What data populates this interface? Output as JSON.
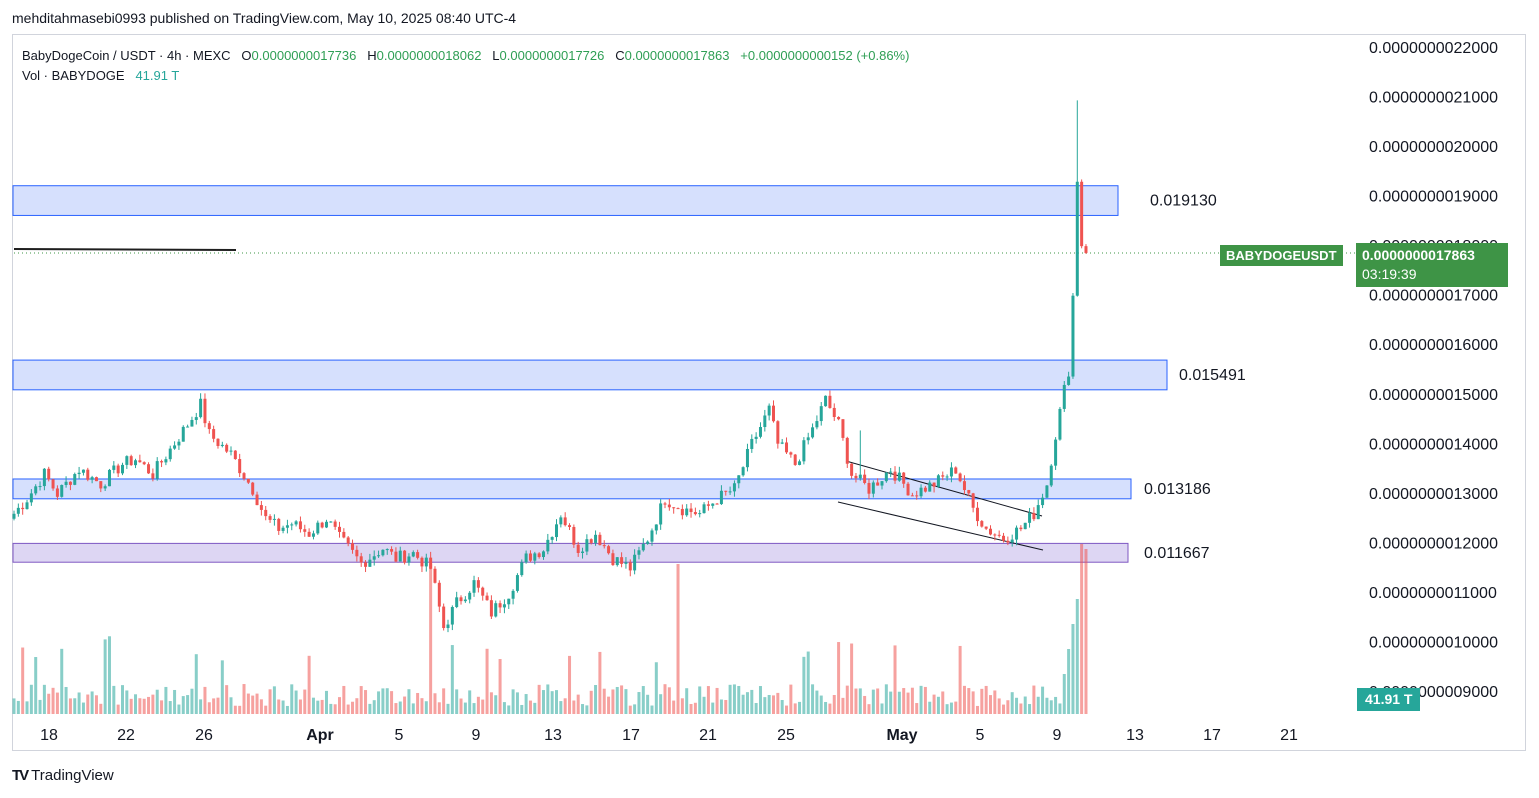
{
  "publisher": "mehditahmasebi0993 published on TradingView.com, May 10, 2025 08:40 UTC-4",
  "legend": {
    "symbol": "BabyDogeCoin / USDT · 4h · MEXC",
    "o_label": "O",
    "o": "0.0000000017736",
    "h_label": "H",
    "h": "0.0000000018062",
    "l_label": "L",
    "l": "0.0000000017726",
    "c_label": "C",
    "c": "0.0000000017863",
    "change": "+0.0000000000152 (+0.86%)",
    "vol_label": "Vol · BABYDOGE",
    "vol_value": "41.91 T"
  },
  "price_tag": {
    "symbol": "BABYDOGEUSDT",
    "price": "0.0000000017863",
    "countdown": "03:19:39"
  },
  "volume_tag": "41.91 T",
  "logo_text": "TradingView",
  "colors": {
    "up": "#26a69a",
    "down": "#ef5350",
    "zone_fill": "#d6e0fd",
    "zone_border": "#2962ff",
    "purple_fill": "#ddd6f3",
    "purple_border": "#7e57c2",
    "last_price": "#3e9446"
  },
  "chart_data": {
    "type": "candlestick",
    "y_ticks": [
      "0.0000000022000",
      "0.0000000021000",
      "0.0000000020000",
      "0.0000000019000",
      "0.0000000018000",
      "0.0000000017000",
      "0.0000000016000",
      "0.0000000015000",
      "0.0000000014000",
      "0.0000000013000",
      "0.0000000012000",
      "0.0000000011000",
      "0.0000000010000",
      "0.0000000009000"
    ],
    "y_range": [
      "0.0000000009000",
      "0.0000000022000"
    ],
    "x_ticks": [
      "18",
      "22",
      "26",
      "Apr",
      "5",
      "9",
      "13",
      "17",
      "21",
      "25",
      "May",
      "5",
      "9",
      "13",
      "17",
      "21"
    ],
    "zones": [
      {
        "label": "0.019130",
        "from": 18.62,
        "to": 19.22,
        "style": "blue"
      },
      {
        "label": "0.015491",
        "from": 15.1,
        "to": 15.7,
        "style": "blue"
      },
      {
        "label": "0.013186",
        "from": 12.9,
        "to": 13.3,
        "style": "blue"
      },
      {
        "label": "0.011667",
        "from": 11.62,
        "to": 12.0,
        "style": "purple"
      }
    ],
    "last_price": 17.863,
    "price_units": "×1e-10 USDT",
    "path": [
      [
        0,
        12.6
      ],
      [
        3,
        12.9
      ],
      [
        7,
        13.4
      ],
      [
        10,
        13.0
      ],
      [
        15,
        13.5
      ],
      [
        20,
        13.2
      ],
      [
        25,
        13.6
      ],
      [
        28,
        13.7
      ],
      [
        32,
        13.4
      ],
      [
        36,
        13.9
      ],
      [
        40,
        14.4
      ],
      [
        43,
        14.8
      ],
      [
        45,
        14.2
      ],
      [
        50,
        13.8
      ],
      [
        55,
        13.1
      ],
      [
        58,
        12.5
      ],
      [
        61,
        12.3
      ],
      [
        64,
        12.4
      ],
      [
        68,
        12.2
      ],
      [
        72,
        12.5
      ],
      [
        75,
        12.1
      ],
      [
        80,
        11.6
      ],
      [
        85,
        11.9
      ],
      [
        88,
        11.7
      ],
      [
        92,
        11.8
      ],
      [
        96,
        11.5
      ],
      [
        99,
        10.3
      ],
      [
        102,
        10.8
      ],
      [
        106,
        11.2
      ],
      [
        110,
        10.6
      ],
      [
        114,
        11.0
      ],
      [
        118,
        11.7
      ],
      [
        122,
        11.9
      ],
      [
        126,
        12.6
      ],
      [
        130,
        11.9
      ],
      [
        134,
        12.2
      ],
      [
        138,
        11.7
      ],
      [
        142,
        11.5
      ],
      [
        146,
        12.1
      ],
      [
        150,
        12.9
      ],
      [
        154,
        12.7
      ],
      [
        158,
        12.6
      ],
      [
        162,
        12.9
      ],
      [
        166,
        13.1
      ],
      [
        170,
        14.0
      ],
      [
        174,
        14.7
      ],
      [
        176,
        14.0
      ],
      [
        180,
        13.6
      ],
      [
        184,
        14.3
      ],
      [
        187,
        14.9
      ],
      [
        190,
        14.4
      ],
      [
        193,
        13.4
      ],
      [
        197,
        13.1
      ],
      [
        202,
        13.5
      ],
      [
        207,
        13.0
      ],
      [
        212,
        13.2
      ],
      [
        217,
        13.5
      ],
      [
        221,
        12.7
      ],
      [
        224,
        12.3
      ],
      [
        228,
        12.1
      ],
      [
        232,
        12.3
      ],
      [
        235,
        12.6
      ],
      [
        238,
        13.2
      ],
      [
        240,
        14.2
      ],
      [
        242,
        15.1
      ],
      [
        243,
        15.5
      ],
      [
        244,
        17.0
      ],
      [
        245,
        19.3
      ],
      [
        246,
        18.0
      ],
      [
        247,
        17.86
      ]
    ],
    "volume_last": "41.91 T"
  }
}
